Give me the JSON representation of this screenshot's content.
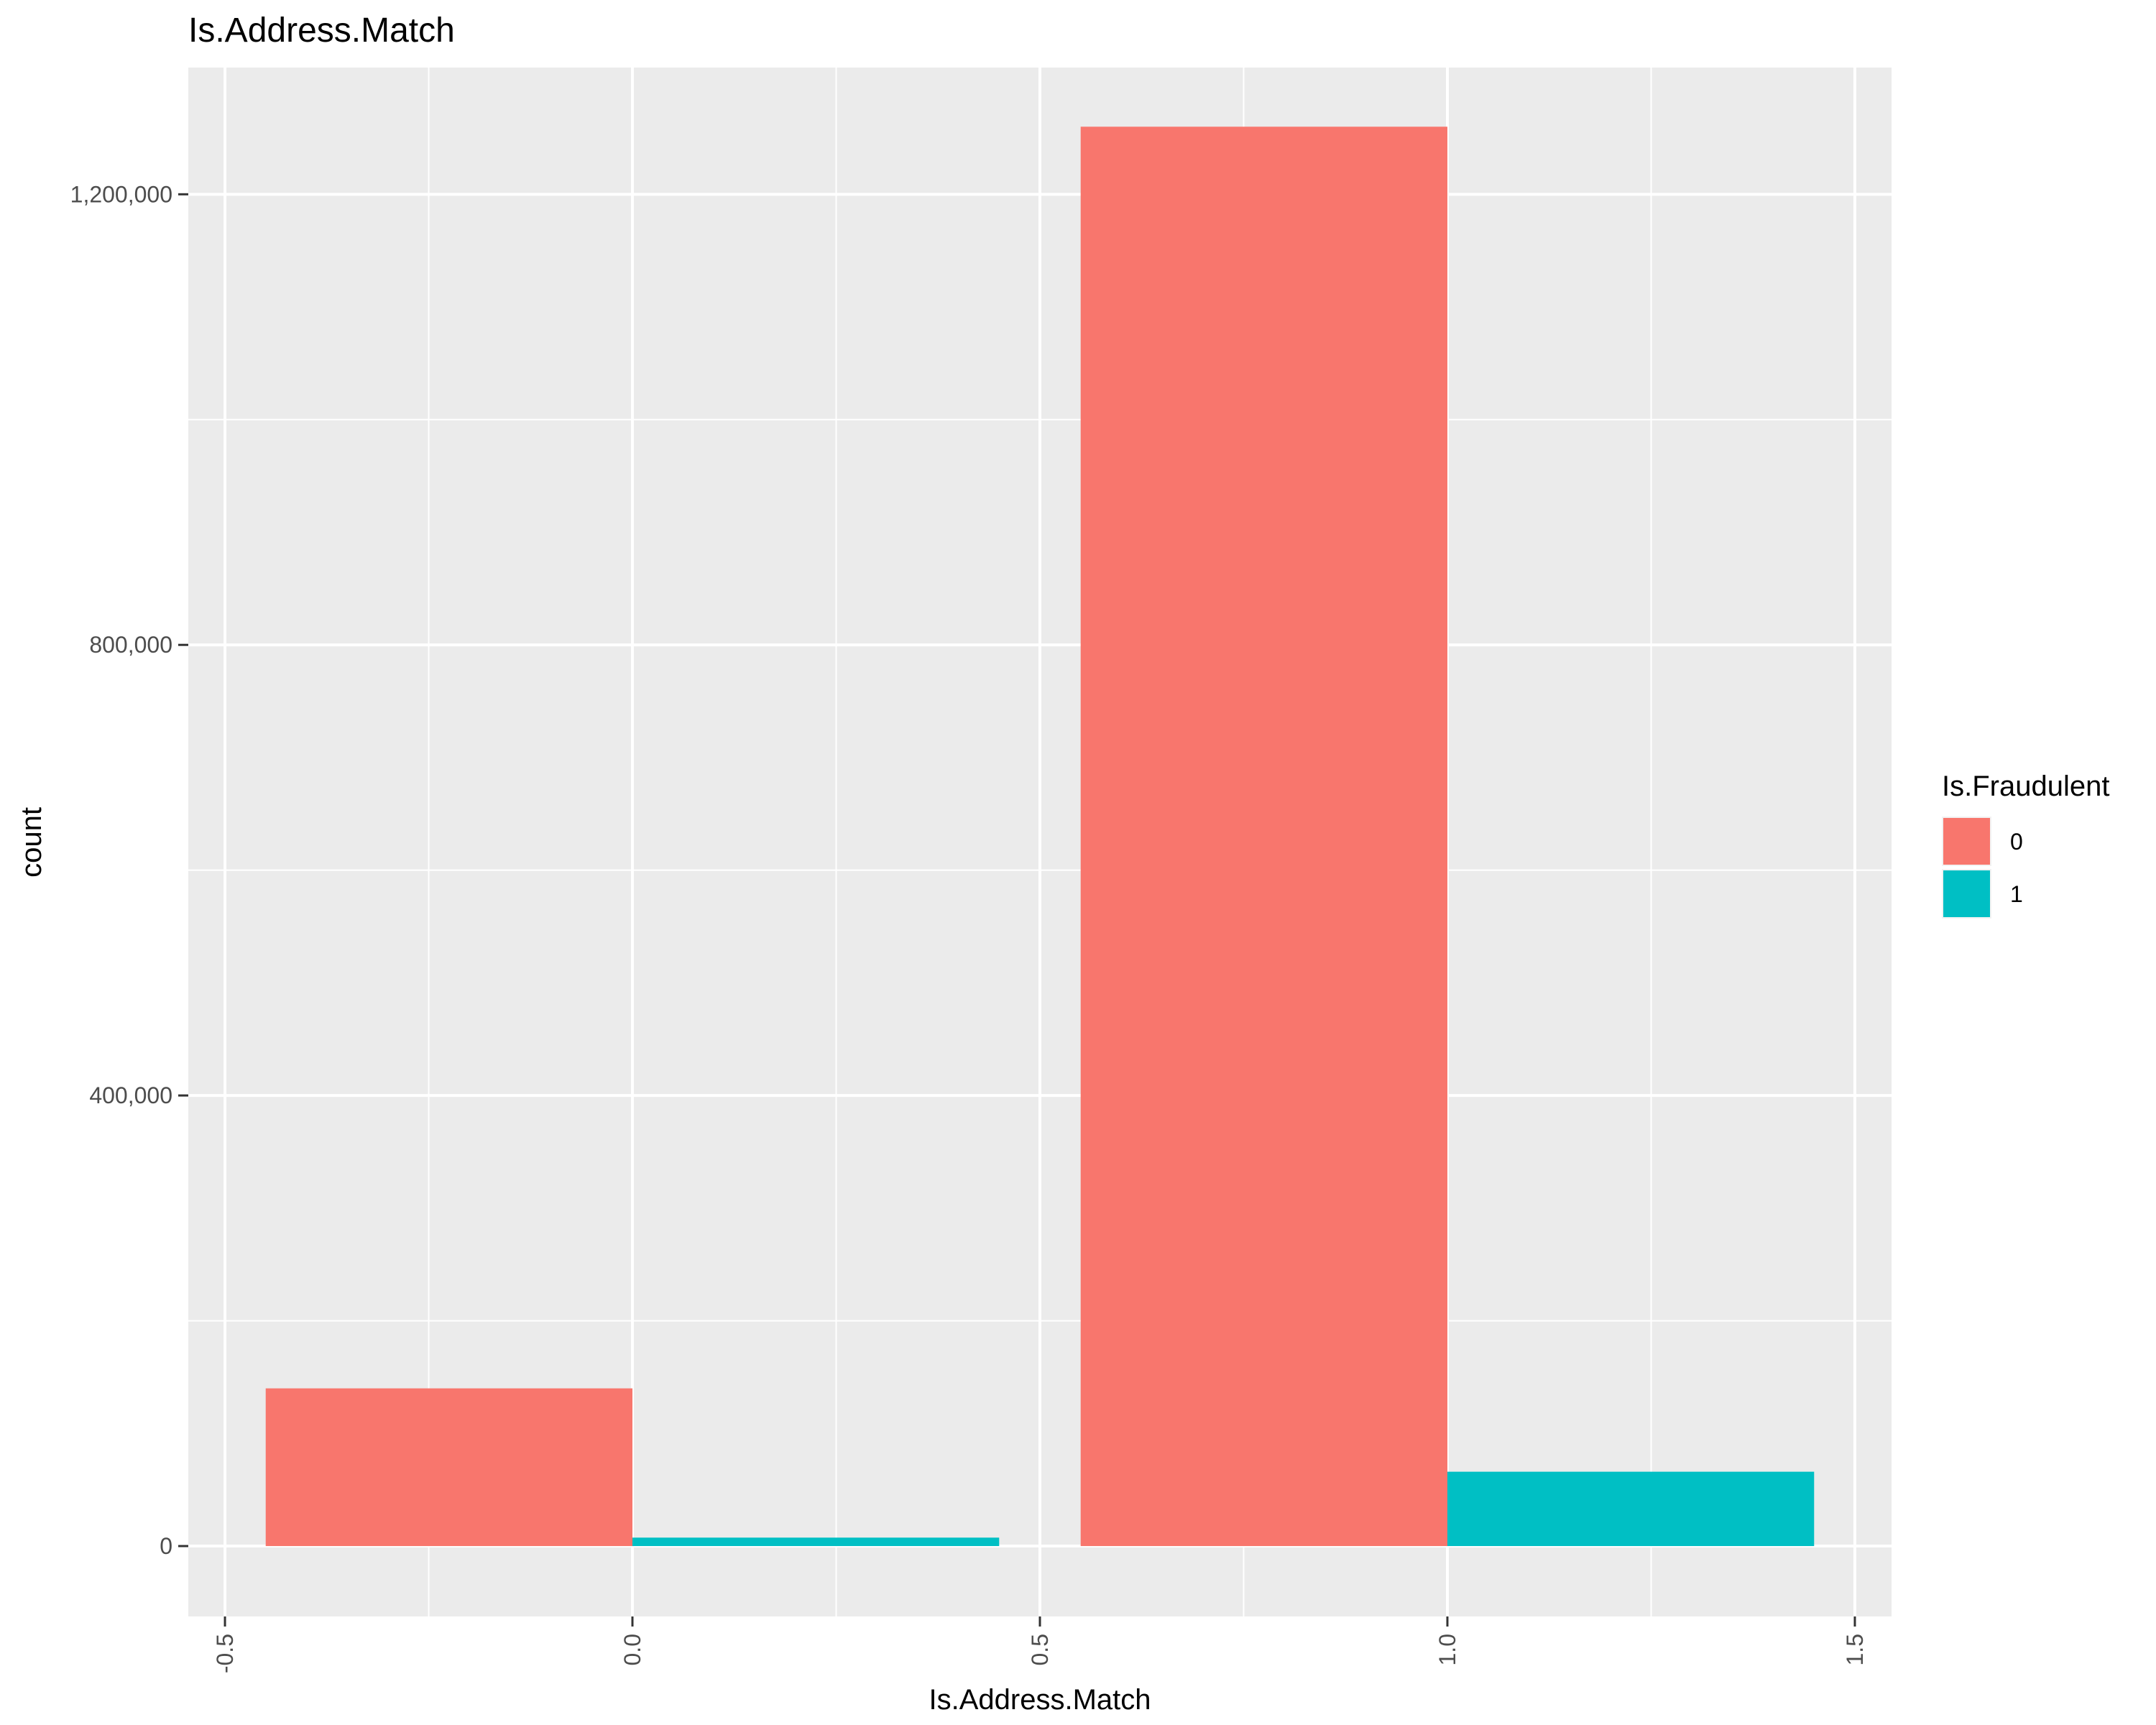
{
  "chart_data": {
    "type": "bar",
    "title": "Is.Address.Match",
    "xlabel": "Is.Address.Match",
    "ylabel": "count",
    "xlim": [
      -0.545,
      1.545
    ],
    "ylim": [
      -62500,
      1312500
    ],
    "x_ticks": [
      "-0.5",
      "0.0",
      "0.5",
      "1.0",
      "1.5"
    ],
    "x_tick_values": [
      -0.5,
      0.0,
      0.5,
      1.0,
      1.5
    ],
    "y_ticks": [
      "0",
      "400,000",
      "800,000",
      "1,200,000"
    ],
    "y_tick_values": [
      0,
      400000,
      800000,
      1200000
    ],
    "grid": true,
    "legend": {
      "title": "Is.Fraudulent",
      "position": "right",
      "items": [
        {
          "label": "0",
          "color": "#F8766D"
        },
        {
          "label": "1",
          "color": "#00BFC4"
        }
      ]
    },
    "categories": [
      0,
      1
    ],
    "bar_width": 0.9,
    "series": [
      {
        "name": "0",
        "color": "#F8766D",
        "values": [
          140000,
          1260000
        ]
      },
      {
        "name": "1",
        "color": "#00BFC4",
        "values": [
          7500,
          66000
        ]
      }
    ],
    "panel_background": "#EBEBEB",
    "grid_color": "#FFFFFF"
  }
}
